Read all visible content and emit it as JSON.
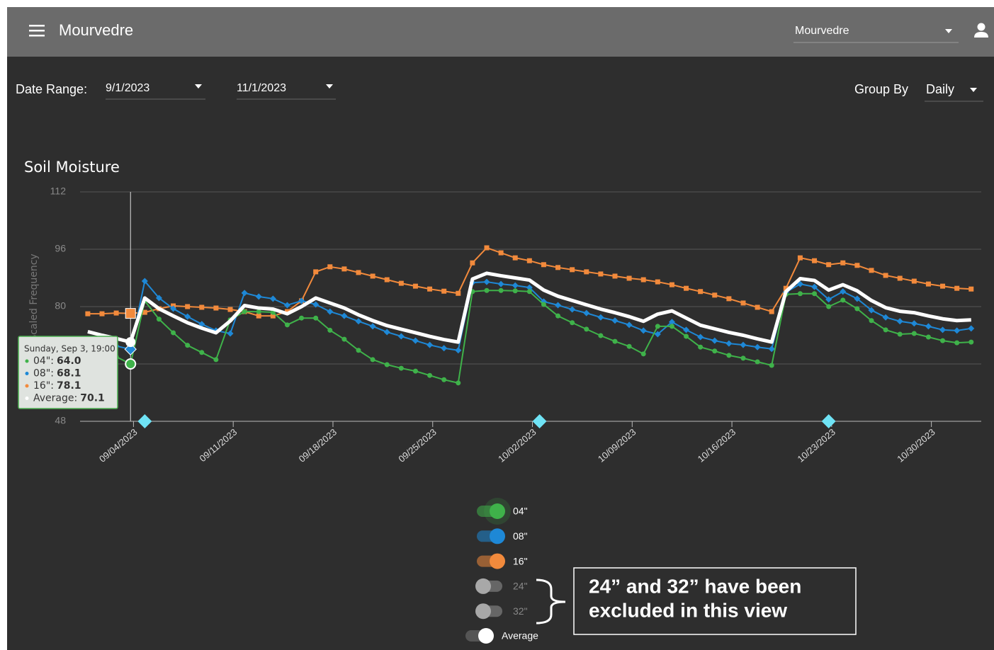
{
  "header": {
    "title": "Mourvedre",
    "vineyard_select": "Mourvedre"
  },
  "filters": {
    "date_range_label": "Date Range:",
    "start": "9/1/2023",
    "end": "11/1/2023",
    "group_by_label": "Group By",
    "group_by": "Daily"
  },
  "chart_data": {
    "type": "line",
    "title": "Soil Moisture",
    "y_label": "Scaled Frequency",
    "x": [
      "2023-08-31T19:00",
      "2023-09-01T19:00",
      "2023-09-02T19:00",
      "2023-09-03T19:00",
      "2023-09-04T19:00",
      "2023-09-05T19:00",
      "2023-09-06T19:00",
      "2023-09-07T19:00",
      "2023-09-08T19:00",
      "2023-09-09T19:00",
      "2023-09-10T19:00",
      "2023-09-11T19:00",
      "2023-09-12T19:00",
      "2023-09-13T19:00",
      "2023-09-14T19:00",
      "2023-09-15T19:00",
      "2023-09-16T19:00",
      "2023-09-17T19:00",
      "2023-09-18T19:00",
      "2023-09-19T19:00",
      "2023-09-20T19:00",
      "2023-09-21T19:00",
      "2023-09-22T19:00",
      "2023-09-23T19:00",
      "2023-09-24T19:00",
      "2023-09-25T19:00",
      "2023-09-26T19:00",
      "2023-09-27T19:00",
      "2023-09-28T19:00",
      "2023-09-29T19:00",
      "2023-09-30T19:00",
      "2023-10-01T19:00",
      "2023-10-02T19:00",
      "2023-10-03T19:00",
      "2023-10-04T19:00",
      "2023-10-05T19:00",
      "2023-10-06T19:00",
      "2023-10-07T19:00",
      "2023-10-08T19:00",
      "2023-10-09T19:00",
      "2023-10-10T19:00",
      "2023-10-11T19:00",
      "2023-10-12T19:00",
      "2023-10-13T19:00",
      "2023-10-14T19:00",
      "2023-10-15T19:00",
      "2023-10-16T19:00",
      "2023-10-17T19:00",
      "2023-10-18T19:00",
      "2023-10-19T19:00",
      "2023-10-20T19:00",
      "2023-10-21T19:00",
      "2023-10-22T19:00",
      "2023-10-23T19:00",
      "2023-10-24T19:00",
      "2023-10-25T19:00",
      "2023-10-26T19:00",
      "2023-10-27T19:00",
      "2023-10-28T19:00",
      "2023-10-29T19:00",
      "2023-10-30T19:00",
      "2023-10-31T19:00",
      "2023-11-01T19:00"
    ],
    "series": [
      {
        "name": "16\"",
        "color": "#f28a3c",
        "marker": "square",
        "values": [
          78.0,
          78.0,
          78.2,
          78.1,
          78.4,
          79.4,
          80.2,
          80.0,
          79.8,
          79.6,
          79.2,
          78.6,
          77.4,
          77.4,
          78.6,
          81.6,
          89.7,
          91.1,
          90.5,
          89.5,
          88.5,
          87.5,
          86.5,
          85.7,
          84.9,
          84.3,
          83.7,
          92.2,
          96.4,
          95.0,
          93.6,
          92.8,
          91.7,
          90.9,
          90.3,
          89.7,
          89.1,
          88.5,
          87.9,
          87.5,
          86.9,
          86.1,
          85.1,
          84.2,
          83.2,
          82.2,
          81.0,
          79.8,
          78.6,
          85.1,
          93.6,
          92.8,
          91.7,
          92.2,
          91.5,
          90.1,
          88.7,
          87.9,
          87.1,
          86.3,
          85.7,
          85.1,
          84.9
        ]
      },
      {
        "name": "08\"",
        "color": "#1e88d6",
        "marker": "diamond",
        "values": [
          70,
          69.5,
          69,
          68.1,
          87.1,
          82.4,
          79.4,
          77.2,
          75.1,
          73.3,
          72.5,
          83.8,
          82.8,
          82.2,
          80.4,
          81.6,
          80.6,
          78.6,
          77.4,
          75.9,
          74.5,
          72.9,
          71.7,
          70.5,
          69.3,
          68.4,
          67.8,
          86.7,
          86.9,
          86.3,
          85.9,
          85.3,
          81.4,
          80.4,
          79.2,
          78.2,
          77.0,
          76.1,
          74.9,
          73.3,
          72.3,
          75.7,
          73.5,
          71.5,
          70.5,
          69.7,
          69.3,
          68.7,
          68.2,
          84.0,
          86.3,
          85.5,
          82.0,
          84.2,
          82.2,
          79.0,
          77.0,
          75.9,
          75.3,
          74.5,
          73.5,
          73.3,
          73.9
        ]
      },
      {
        "name": "04\"",
        "color": "#3fb24a",
        "marker": "circle",
        "values": [
          71,
          68.5,
          66,
          64.0,
          81.6,
          76.5,
          72.7,
          69.2,
          67.2,
          65.2,
          76.3,
          78.6,
          78.6,
          78.4,
          74.9,
          76.8,
          76.8,
          73.4,
          70.9,
          67.8,
          65.2,
          63.8,
          62.8,
          62.0,
          60.8,
          59.6,
          58.7,
          84.2,
          84.5,
          84.5,
          84.4,
          84.2,
          80.6,
          77.4,
          75.5,
          73.7,
          71.9,
          70.3,
          68.9,
          66.8,
          74.5,
          74.5,
          71.7,
          68.7,
          67.6,
          66.4,
          65.6,
          64.6,
          63.6,
          83.4,
          83.6,
          83.6,
          80.0,
          81.8,
          79.4,
          76.1,
          73.5,
          72.3,
          72.5,
          71.5,
          70.5,
          69.9,
          70.1
        ]
      },
      {
        "name": "Average",
        "color": "#ffffff",
        "values": [
          73.0,
          72.0,
          71.1,
          70.1,
          82.4,
          79.4,
          77.4,
          75.5,
          74.0,
          72.7,
          76.0,
          80.3,
          79.6,
          79.3,
          78.0,
          80.0,
          82.4,
          81.0,
          79.6,
          77.7,
          76.1,
          74.7,
          73.7,
          72.7,
          71.7,
          70.8,
          70.1,
          87.7,
          89.3,
          88.6,
          88.0,
          87.4,
          84.6,
          82.9,
          81.7,
          80.5,
          79.3,
          78.3,
          77.2,
          75.9,
          77.9,
          78.8,
          76.8,
          74.8,
          73.8,
          72.8,
          72.0,
          71.0,
          70.1,
          84.2,
          87.8,
          87.3,
          84.6,
          86.1,
          84.4,
          81.7,
          79.7,
          78.7,
          78.3,
          77.4,
          76.6,
          76.1,
          76.3
        ]
      }
    ],
    "excluded_series": [
      "24\"",
      "32\""
    ],
    "xlim": [
      "2023-08-31T06:00",
      "2023-11-02T12:00"
    ],
    "xticks": [
      {
        "value": "2023-09-04T00:00",
        "label": "09/04/2023"
      },
      {
        "value": "2023-09-11T00:00",
        "label": "09/11/2023"
      },
      {
        "value": "2023-09-18T00:00",
        "label": "09/18/2023"
      },
      {
        "value": "2023-09-25T00:00",
        "label": "09/25/2023"
      },
      {
        "value": "2023-10-02T00:00",
        "label": "10/02/2023"
      },
      {
        "value": "2023-10-09T00:00",
        "label": "10/09/2023"
      },
      {
        "value": "2023-10-16T00:00",
        "label": "10/16/2023"
      },
      {
        "value": "2023-10-23T00:00",
        "label": "10/23/2023"
      },
      {
        "value": "2023-10-30T00:00",
        "label": "10/30/2023"
      }
    ],
    "ylim": [
      48,
      112
    ],
    "yticks": [
      48,
      64,
      80,
      96,
      112
    ],
    "grid": true,
    "event_markers": [
      "2023-09-04T19:00",
      "2023-10-02T12:00",
      "2023-10-22T19:00"
    ],
    "tooltip": {
      "title": "Sunday, Sep 3, 19:00",
      "labels": [
        "04\":",
        "08\":",
        "16\":",
        "Average:"
      ],
      "value_labels": [
        "64.0",
        "68.1",
        "78.1",
        "70.1"
      ]
    }
  },
  "callout": {
    "lines": [
      "24” and 32” have been",
      "excluded in this view"
    ]
  }
}
